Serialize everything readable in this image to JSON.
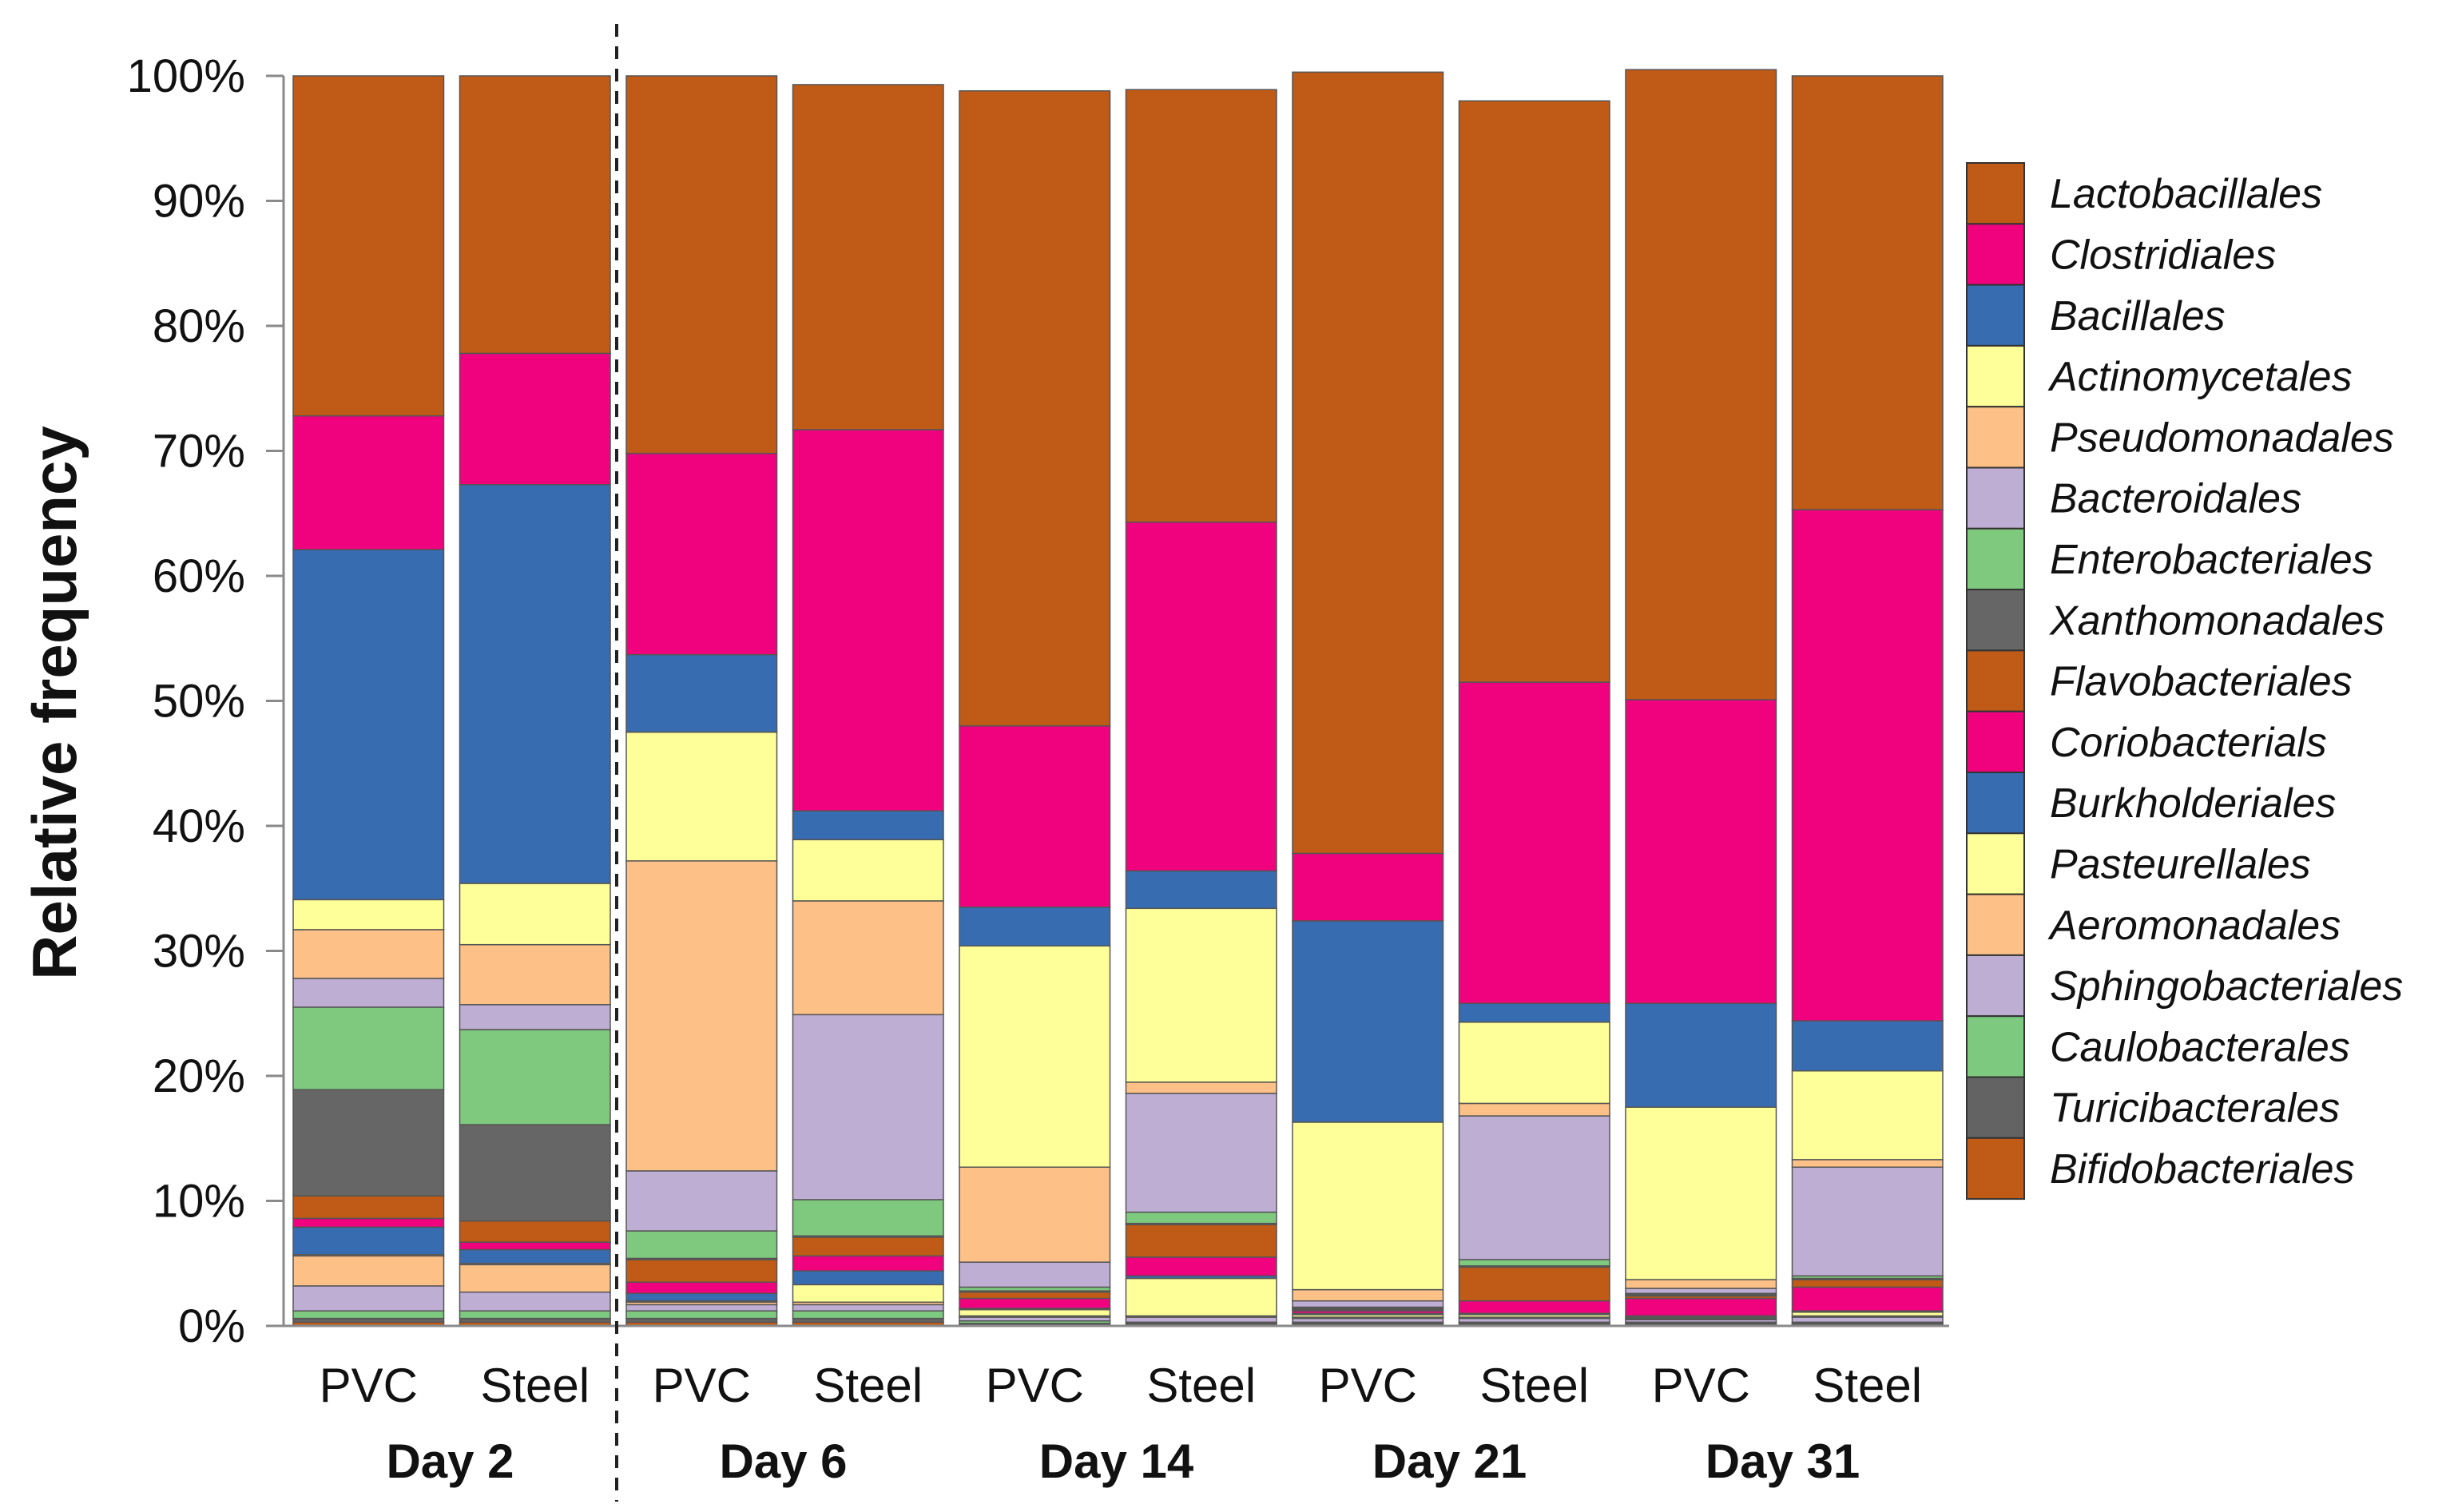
{
  "chart_data": {
    "type": "bar",
    "stacked": true,
    "title": "",
    "xlabel": "",
    "ylabel": "Relative frequency",
    "ylim": [
      0,
      100
    ],
    "y_ticks": [
      "0%",
      "10%",
      "20%",
      "30%",
      "40%",
      "50%",
      "60%",
      "70%",
      "80%",
      "90%",
      "100%"
    ],
    "groups": [
      "Day 2",
      "Day 6",
      "Day 14",
      "Day 21",
      "Day 31"
    ],
    "categories": [
      "PVC",
      "Steel",
      "PVC",
      "Steel",
      "PVC",
      "Steel",
      "PVC",
      "Steel",
      "PVC",
      "Steel"
    ],
    "category_group_index": [
      0,
      0,
      1,
      1,
      2,
      2,
      3,
      3,
      4,
      4
    ],
    "divider_after_index": 1,
    "legend_position": "right",
    "series": [
      {
        "name": "Bifidobacteriales",
        "color": "#C05A17",
        "values": [
          0.3,
          0.3,
          0.3,
          0.3,
          0.1,
          0.1,
          0.1,
          0.1,
          0.1,
          0.1
        ]
      },
      {
        "name": "Turicibacterales",
        "color": "#636363",
        "values": [
          0.3,
          0.3,
          0.3,
          0.3,
          0.1,
          0.1,
          0.1,
          0.1,
          0.1,
          0.1
        ]
      },
      {
        "name": "Caulobacterales",
        "color": "#7DC97F",
        "values": [
          0.6,
          0.6,
          0.6,
          0.6,
          0.2,
          0.1,
          0.1,
          0.1,
          0.1,
          0.1
        ]
      },
      {
        "name": "Sphingobacteriales",
        "color": "#BEAED4",
        "values": [
          2.0,
          1.5,
          0.5,
          0.5,
          0.3,
          0.4,
          0.3,
          0.3,
          0.2,
          0.4
        ]
      },
      {
        "name": "Aeromonadales",
        "color": "#FDC086",
        "values": [
          2.4,
          2.2,
          0.2,
          0.2,
          0.1,
          0.1,
          0.1,
          0.1,
          0.1,
          0.1
        ]
      },
      {
        "name": "Pasteurellales",
        "color": "#FFFF99",
        "values": [
          0.1,
          0.1,
          0.1,
          1.4,
          0.5,
          3.0,
          0.2,
          0.2,
          0.1,
          0.3
        ]
      },
      {
        "name": "Burkholderiales",
        "color": "#386CB0",
        "values": [
          2.2,
          1.1,
          0.6,
          1.1,
          0.1,
          0.2,
          0.1,
          0.1,
          0.1,
          0.1
        ]
      },
      {
        "name": "Coriobacterials",
        "color": "#F0027F",
        "values": [
          0.7,
          0.6,
          0.9,
          1.2,
          0.8,
          1.5,
          0.2,
          1.0,
          1.4,
          1.9
        ]
      },
      {
        "name": "Flavobacteriales",
        "color": "#BF5B17",
        "values": [
          1.8,
          1.7,
          1.8,
          1.5,
          0.5,
          2.6,
          0.1,
          2.7,
          0.2,
          0.6
        ]
      },
      {
        "name": "Xanthomonadales",
        "color": "#666666",
        "values": [
          8.5,
          7.7,
          0.1,
          0.1,
          0.1,
          0.1,
          0.1,
          0.1,
          0.1,
          0.1
        ]
      },
      {
        "name": "Enterobacteriales",
        "color": "#7FC97F",
        "values": [
          6.6,
          7.6,
          2.2,
          2.9,
          0.3,
          0.9,
          0.1,
          0.5,
          0.1,
          0.2
        ]
      },
      {
        "name": "Bacteroidales",
        "color": "#BEAED4",
        "values": [
          2.3,
          2.0,
          4.8,
          14.8,
          2.0,
          9.5,
          0.5,
          11.5,
          0.4,
          8.7
        ]
      },
      {
        "name": "Pseudomonadales",
        "color": "#FDC086",
        "values": [
          3.9,
          4.8,
          24.8,
          9.1,
          7.6,
          0.9,
          0.9,
          1.0,
          0.7,
          0.6
        ]
      },
      {
        "name": "Actinomycetales",
        "color": "#FFFF99",
        "values": [
          2.4,
          4.9,
          10.3,
          4.9,
          17.7,
          13.9,
          13.4,
          6.5,
          13.8,
          7.1
        ]
      },
      {
        "name": "Bacillales",
        "color": "#386CB0",
        "values": [
          28.0,
          31.9,
          6.2,
          2.3,
          3.1,
          3.0,
          16.1,
          1.5,
          8.3,
          4.0
        ]
      },
      {
        "name": "Clostridiales",
        "color": "#F0027F",
        "values": [
          10.7,
          10.5,
          16.1,
          30.5,
          14.5,
          27.9,
          5.4,
          25.7,
          24.3,
          40.9
        ]
      },
      {
        "name": "Lactobacillales",
        "color": "#C05A17",
        "values": [
          27.2,
          22.2,
          30.2,
          27.6,
          50.8,
          34.6,
          62.5,
          46.5,
          50.4,
          34.7
        ]
      }
    ],
    "legend_order": [
      "Lactobacillales",
      "Clostridiales",
      "Bacillales",
      "Actinomycetales",
      "Pseudomonadales",
      "Bacteroidales",
      "Enterobacteriales",
      "Xanthomonadales",
      "Flavobacteriales",
      "Coriobacterials",
      "Burkholderiales",
      "Pasteurellales",
      "Aeromonadales",
      "Sphingobacteriales",
      "Caulobacterales",
      "Turicibacterales",
      "Bifidobacteriales"
    ]
  }
}
